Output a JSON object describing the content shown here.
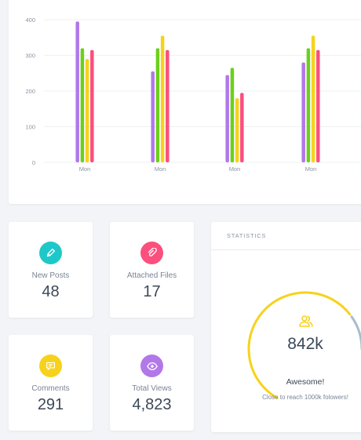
{
  "chart_data": {
    "type": "bar",
    "categories": [
      "Mon",
      "Mon",
      "Mon",
      "Mon"
    ],
    "series": [
      {
        "color": "#b278e8",
        "values": [
          395,
          255,
          245,
          280
        ]
      },
      {
        "color": "#6bd01c",
        "values": [
          320,
          320,
          265,
          320
        ]
      },
      {
        "color": "#f7d21c",
        "values": [
          290,
          355,
          180,
          355
        ]
      },
      {
        "color": "#fb4f7e",
        "values": [
          315,
          315,
          195,
          315
        ]
      }
    ],
    "yticks": [
      0,
      100,
      200,
      300,
      400
    ],
    "ylim": [
      0,
      420
    ],
    "grid": true
  },
  "stats": {
    "new_posts": {
      "label": "New Posts",
      "value": "48",
      "icon": "pencil-icon",
      "color": "#1fc8c8"
    },
    "attached_files": {
      "label": "Attached Files",
      "value": "17",
      "icon": "paperclip-icon",
      "color": "#fb4f7e"
    },
    "comments": {
      "label": "Comments",
      "value": "291",
      "icon": "chat-icon",
      "color": "#f7d21c"
    },
    "total_views": {
      "label": "Total Views",
      "value": "4,823",
      "icon": "eye-icon",
      "color": "#b278e8"
    }
  },
  "statistics": {
    "header": "STATISTICS",
    "value": "842k",
    "title": "Awesome!",
    "subtitle": "Close to reach 1000k folowers!",
    "progress": 0.842,
    "gauge_color": "#f7d21c",
    "track_color": "#a9bccc",
    "icon": "users-icon"
  }
}
